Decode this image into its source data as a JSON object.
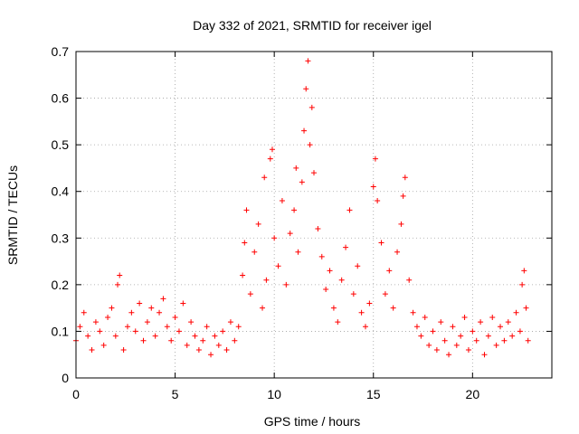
{
  "chart_data": {
    "type": "scatter",
    "title": "Day 332 of 2021, SRMTID for receiver igel",
    "xlabel": "GPS time / hours",
    "ylabel": "SRMTID / TECUs",
    "xlim": [
      0,
      24
    ],
    "ylim": [
      0,
      0.7
    ],
    "x_ticks": [
      0,
      5,
      10,
      15,
      20
    ],
    "x_tick_labels": [
      "0",
      "5",
      "10",
      "15",
      "20"
    ],
    "y_ticks": [
      0,
      0.1,
      0.2,
      0.3,
      0.4,
      0.5,
      0.6,
      0.7
    ],
    "y_tick_labels": [
      "0",
      "0.1",
      "0.2",
      "0.3",
      "0.4",
      "0.5",
      "0.6",
      "0.7"
    ],
    "grid": true,
    "marker": "+",
    "color": "#ff0000",
    "series": [
      {
        "name": "SRMTID",
        "points": [
          [
            0.0,
            0.08
          ],
          [
            0.2,
            0.11
          ],
          [
            0.4,
            0.14
          ],
          [
            0.6,
            0.09
          ],
          [
            0.8,
            0.06
          ],
          [
            1.0,
            0.12
          ],
          [
            1.2,
            0.1
          ],
          [
            1.4,
            0.07
          ],
          [
            1.6,
            0.13
          ],
          [
            1.8,
            0.15
          ],
          [
            2.0,
            0.09
          ],
          [
            2.1,
            0.2
          ],
          [
            2.2,
            0.22
          ],
          [
            2.4,
            0.06
          ],
          [
            2.6,
            0.11
          ],
          [
            2.8,
            0.14
          ],
          [
            3.0,
            0.1
          ],
          [
            3.2,
            0.16
          ],
          [
            3.4,
            0.08
          ],
          [
            3.6,
            0.12
          ],
          [
            3.8,
            0.15
          ],
          [
            4.0,
            0.09
          ],
          [
            4.2,
            0.14
          ],
          [
            4.4,
            0.17
          ],
          [
            4.6,
            0.11
          ],
          [
            4.8,
            0.08
          ],
          [
            5.0,
            0.13
          ],
          [
            5.2,
            0.1
          ],
          [
            5.4,
            0.16
          ],
          [
            5.6,
            0.07
          ],
          [
            5.8,
            0.12
          ],
          [
            6.0,
            0.09
          ],
          [
            6.2,
            0.06
          ],
          [
            6.4,
            0.08
          ],
          [
            6.6,
            0.11
          ],
          [
            6.8,
            0.05
          ],
          [
            7.0,
            0.09
          ],
          [
            7.2,
            0.07
          ],
          [
            7.4,
            0.1
          ],
          [
            7.6,
            0.06
          ],
          [
            7.8,
            0.12
          ],
          [
            8.0,
            0.08
          ],
          [
            8.2,
            0.11
          ],
          [
            8.4,
            0.22
          ],
          [
            8.5,
            0.29
          ],
          [
            8.6,
            0.36
          ],
          [
            8.8,
            0.18
          ],
          [
            9.0,
            0.27
          ],
          [
            9.2,
            0.33
          ],
          [
            9.4,
            0.15
          ],
          [
            9.5,
            0.43
          ],
          [
            9.6,
            0.21
          ],
          [
            9.8,
            0.47
          ],
          [
            9.9,
            0.49
          ],
          [
            10.0,
            0.3
          ],
          [
            10.2,
            0.24
          ],
          [
            10.4,
            0.38
          ],
          [
            10.6,
            0.2
          ],
          [
            10.8,
            0.31
          ],
          [
            11.0,
            0.36
          ],
          [
            11.1,
            0.45
          ],
          [
            11.2,
            0.27
          ],
          [
            11.4,
            0.42
          ],
          [
            11.5,
            0.53
          ],
          [
            11.6,
            0.62
          ],
          [
            11.7,
            0.68
          ],
          [
            11.8,
            0.5
          ],
          [
            11.9,
            0.58
          ],
          [
            12.0,
            0.44
          ],
          [
            12.2,
            0.32
          ],
          [
            12.4,
            0.26
          ],
          [
            12.6,
            0.19
          ],
          [
            12.8,
            0.23
          ],
          [
            13.0,
            0.15
          ],
          [
            13.2,
            0.12
          ],
          [
            13.4,
            0.21
          ],
          [
            13.6,
            0.28
          ],
          [
            13.8,
            0.36
          ],
          [
            14.0,
            0.18
          ],
          [
            14.2,
            0.24
          ],
          [
            14.4,
            0.14
          ],
          [
            14.6,
            0.11
          ],
          [
            14.8,
            0.16
          ],
          [
            15.0,
            0.41
          ],
          [
            15.1,
            0.47
          ],
          [
            15.2,
            0.38
          ],
          [
            15.4,
            0.29
          ],
          [
            15.6,
            0.18
          ],
          [
            15.8,
            0.23
          ],
          [
            16.0,
            0.15
          ],
          [
            16.2,
            0.27
          ],
          [
            16.4,
            0.33
          ],
          [
            16.5,
            0.39
          ],
          [
            16.6,
            0.43
          ],
          [
            16.8,
            0.21
          ],
          [
            17.0,
            0.14
          ],
          [
            17.2,
            0.11
          ],
          [
            17.4,
            0.09
          ],
          [
            17.6,
            0.13
          ],
          [
            17.8,
            0.07
          ],
          [
            18.0,
            0.1
          ],
          [
            18.2,
            0.06
          ],
          [
            18.4,
            0.12
          ],
          [
            18.6,
            0.08
          ],
          [
            18.8,
            0.05
          ],
          [
            19.0,
            0.11
          ],
          [
            19.2,
            0.07
          ],
          [
            19.4,
            0.09
          ],
          [
            19.6,
            0.13
          ],
          [
            19.8,
            0.06
          ],
          [
            20.0,
            0.1
          ],
          [
            20.2,
            0.08
          ],
          [
            20.4,
            0.12
          ],
          [
            20.6,
            0.05
          ],
          [
            20.8,
            0.09
          ],
          [
            21.0,
            0.13
          ],
          [
            21.2,
            0.07
          ],
          [
            21.4,
            0.11
          ],
          [
            21.6,
            0.08
          ],
          [
            21.8,
            0.12
          ],
          [
            22.0,
            0.09
          ],
          [
            22.2,
            0.14
          ],
          [
            22.4,
            0.1
          ],
          [
            22.5,
            0.2
          ],
          [
            22.6,
            0.23
          ],
          [
            22.7,
            0.15
          ],
          [
            22.8,
            0.08
          ]
        ]
      }
    ]
  }
}
